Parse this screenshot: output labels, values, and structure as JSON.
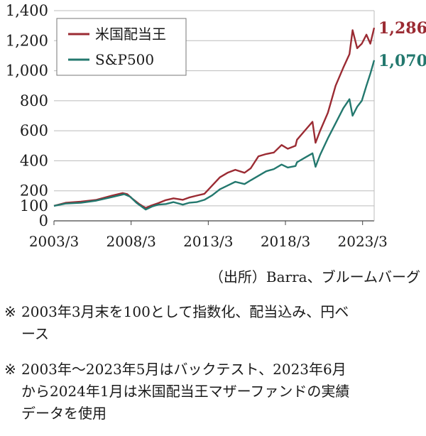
{
  "chart_data": {
    "type": "line",
    "y_ticks": [
      {
        "value": 1400,
        "label": "1,400"
      },
      {
        "value": 1200,
        "label": "1,200"
      },
      {
        "value": 1000,
        "label": "1,000"
      },
      {
        "value": 800,
        "label": "800"
      },
      {
        "value": 600,
        "label": "600"
      },
      {
        "value": 400,
        "label": "400"
      },
      {
        "value": 200,
        "label": "200"
      },
      {
        "value": 100,
        "label": "100"
      },
      {
        "value": 0,
        "label": "0"
      }
    ],
    "x_ticks": [
      {
        "value": 2003.25,
        "label": "2003/3"
      },
      {
        "value": 2008.25,
        "label": "2008/3"
      },
      {
        "value": 2013.25,
        "label": "2013/3"
      },
      {
        "value": 2018.25,
        "label": "2018/3"
      },
      {
        "value": 2023.25,
        "label": "2023/3"
      }
    ],
    "xlim": [
      2003.25,
      2024.0
    ],
    "ylim": [
      0,
      1400
    ],
    "grid": "horizontal",
    "legend_position": "top-left",
    "series": [
      {
        "name": "米国配当王",
        "color": "#9b2b33",
        "end_label": "1,286",
        "points": [
          [
            2003.25,
            100
          ],
          [
            2004.0,
            120
          ],
          [
            2005.0,
            128
          ],
          [
            2006.0,
            140
          ],
          [
            2007.0,
            168
          ],
          [
            2007.7,
            185
          ],
          [
            2008.0,
            178
          ],
          [
            2008.3,
            150
          ],
          [
            2008.8,
            110
          ],
          [
            2009.2,
            85
          ],
          [
            2009.5,
            100
          ],
          [
            2010.0,
            118
          ],
          [
            2010.5,
            138
          ],
          [
            2011.0,
            150
          ],
          [
            2011.6,
            140
          ],
          [
            2012.0,
            155
          ],
          [
            2012.5,
            168
          ],
          [
            2013.0,
            180
          ],
          [
            2013.5,
            235
          ],
          [
            2014.0,
            290
          ],
          [
            2014.5,
            320
          ],
          [
            2015.0,
            340
          ],
          [
            2015.6,
            320
          ],
          [
            2016.0,
            350
          ],
          [
            2016.5,
            430
          ],
          [
            2017.0,
            445
          ],
          [
            2017.5,
            455
          ],
          [
            2018.0,
            505
          ],
          [
            2018.4,
            480
          ],
          [
            2018.9,
            500
          ],
          [
            2019.0,
            540
          ],
          [
            2019.5,
            600
          ],
          [
            2020.0,
            660
          ],
          [
            2020.2,
            520
          ],
          [
            2020.5,
            600
          ],
          [
            2021.0,
            720
          ],
          [
            2021.5,
            900
          ],
          [
            2022.0,
            1020
          ],
          [
            2022.4,
            1110
          ],
          [
            2022.6,
            1270
          ],
          [
            2022.9,
            1150
          ],
          [
            2023.2,
            1180
          ],
          [
            2023.5,
            1240
          ],
          [
            2023.75,
            1180
          ],
          [
            2024.0,
            1286
          ]
        ]
      },
      {
        "name": "S&P500",
        "color": "#23786e",
        "end_label": "1,070",
        "points": [
          [
            2003.25,
            100
          ],
          [
            2004.0,
            115
          ],
          [
            2005.0,
            120
          ],
          [
            2006.0,
            135
          ],
          [
            2007.0,
            158
          ],
          [
            2007.8,
            178
          ],
          [
            2008.2,
            160
          ],
          [
            2008.6,
            120
          ],
          [
            2009.2,
            75
          ],
          [
            2009.6,
            95
          ],
          [
            2010.0,
            108
          ],
          [
            2010.5,
            112
          ],
          [
            2011.0,
            125
          ],
          [
            2011.6,
            108
          ],
          [
            2012.0,
            120
          ],
          [
            2012.5,
            125
          ],
          [
            2013.0,
            140
          ],
          [
            2013.5,
            170
          ],
          [
            2014.0,
            210
          ],
          [
            2014.5,
            235
          ],
          [
            2015.0,
            260
          ],
          [
            2015.6,
            245
          ],
          [
            2016.0,
            270
          ],
          [
            2016.5,
            300
          ],
          [
            2017.0,
            330
          ],
          [
            2017.5,
            345
          ],
          [
            2018.0,
            375
          ],
          [
            2018.4,
            355
          ],
          [
            2018.9,
            365
          ],
          [
            2019.0,
            390
          ],
          [
            2019.5,
            420
          ],
          [
            2020.0,
            450
          ],
          [
            2020.2,
            360
          ],
          [
            2020.5,
            440
          ],
          [
            2021.0,
            550
          ],
          [
            2021.5,
            650
          ],
          [
            2022.0,
            750
          ],
          [
            2022.4,
            810
          ],
          [
            2022.6,
            700
          ],
          [
            2022.9,
            760
          ],
          [
            2023.2,
            800
          ],
          [
            2023.5,
            900
          ],
          [
            2023.75,
            980
          ],
          [
            2024.0,
            1070
          ]
        ]
      }
    ]
  },
  "source_text": "（出所）Barra、ブルームバーグ",
  "notes": [
    {
      "mark": "※",
      "lines": [
        "2003年3月末を100として指数化、配当込み、円ベ",
        "ース"
      ]
    },
    {
      "mark": "※",
      "lines": [
        "2003年～2023年5月はバックテスト、2023年6月",
        "から2024年1月は米国配当王マザーファンドの実績",
        "データを使用"
      ]
    }
  ]
}
